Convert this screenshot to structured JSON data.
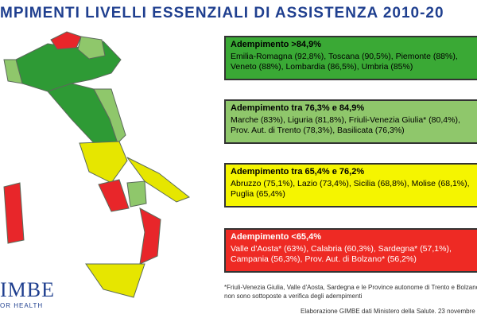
{
  "header": {
    "title": "MPIMENTI LIVELLI ESSENZIALI DI ASSISTENZA 2010-20"
  },
  "boxes": [
    {
      "heading": "Adempimento >84,9%",
      "lines": [
        "Emilia-Romagna (92,8%), Toscana (90,5%), Piemonte (88%),",
        "Veneto (88%), Lombardia (86,5%), Umbria (85%)"
      ]
    },
    {
      "heading": "Adempimento tra 76,3% e 84,9%",
      "lines": [
        "Marche (83%), Liguria (81,8%), Friuli-Venezia Giulia* (80,4%),",
        "Prov. Aut. di Trento (78,3%), Basilicata (76,3%)"
      ]
    },
    {
      "heading": "Adempimento tra 65,4% e 76,2%",
      "lines": [
        "Abruzzo (75,1%), Lazio (73,4%), Sicilia (68,8%), Molise (68,1%),",
        "Puglia (65,4%)"
      ]
    },
    {
      "heading": "Adempimento <65,4%",
      "lines": [
        "Valle d'Aosta* (63%), Calabria (60,3%), Sardegna* (57,1%),",
        "Campania (56,3%), Prov. Aut. di Bolzano* (56,2%)"
      ]
    }
  ],
  "footnote": [
    "*Friuli-Venezia Giulia, Valle d'Aosta, Sardegna e le Province autonome di Trento e Bolzano",
    "non sono sottoposte a verifica degli adempimenti"
  ],
  "source": "Elaborazione GIMBE dati Ministero della Salute. 23 novembre",
  "logo": {
    "name": "IMBE",
    "tagline": "OR HEALTH"
  }
}
